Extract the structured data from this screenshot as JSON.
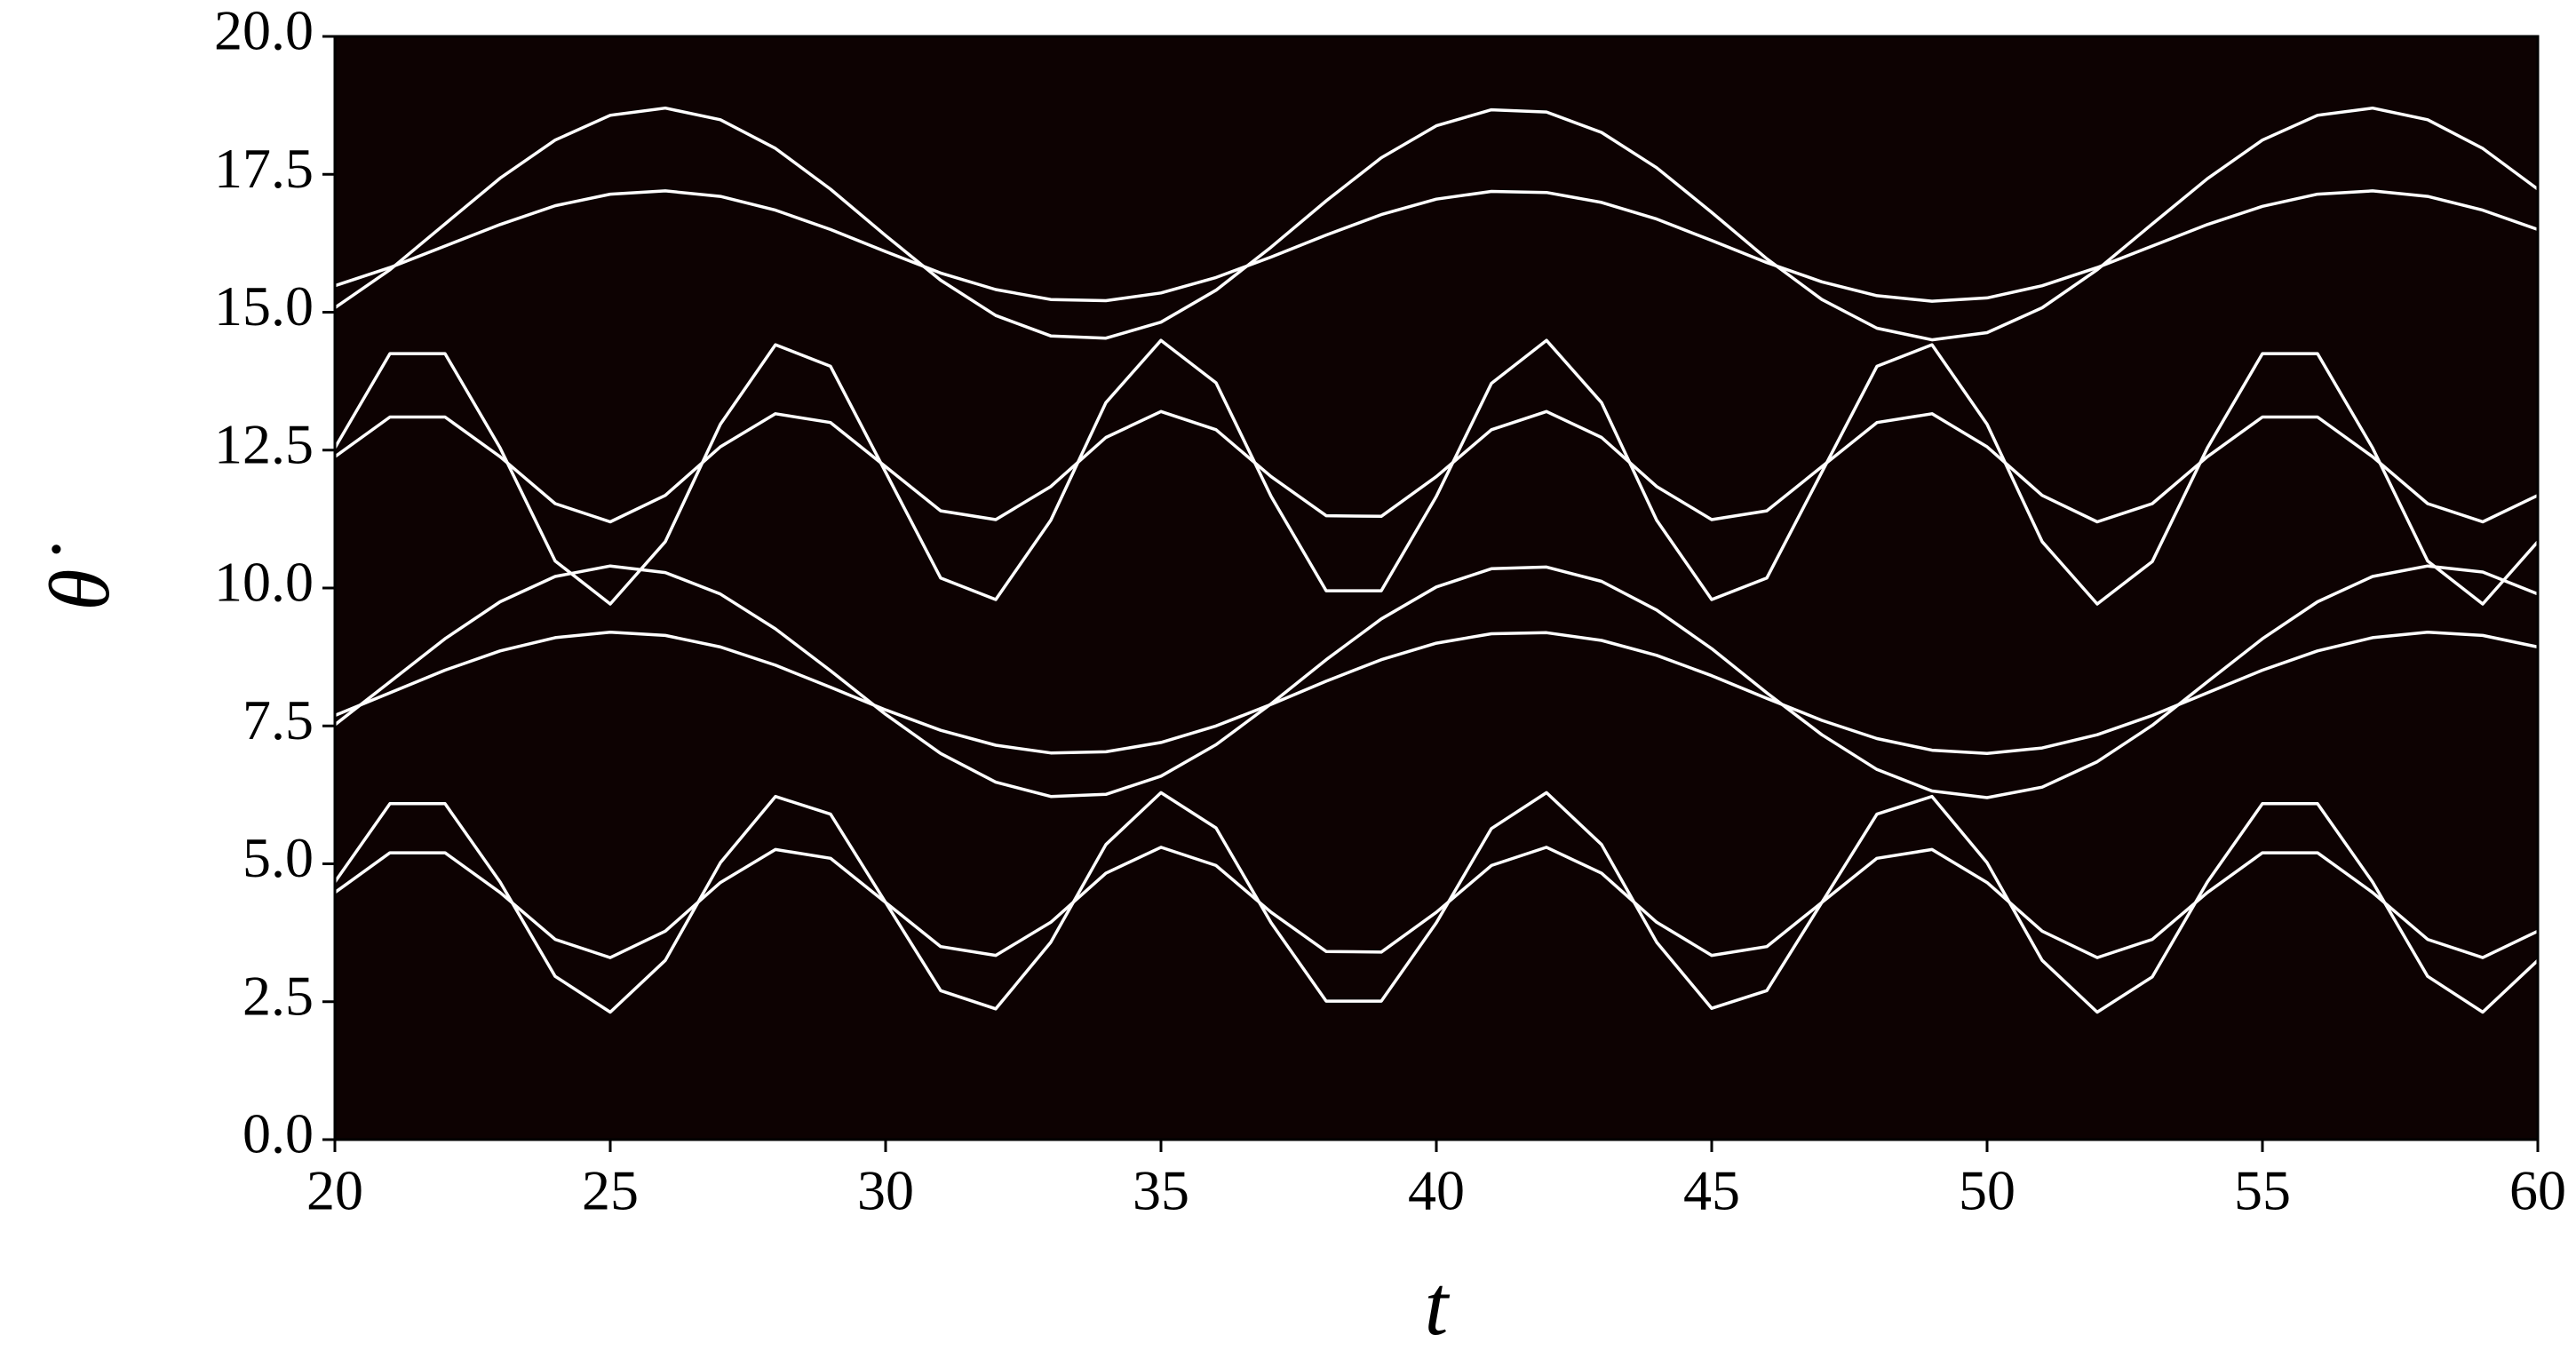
{
  "chart_data": {
    "type": "line",
    "x_label": "t",
    "y_label": "θ̇",
    "background": "#0d0202",
    "xlim": [
      20,
      60
    ],
    "ylim": [
      0,
      20
    ],
    "xticks": [
      20,
      25,
      30,
      35,
      40,
      45,
      50,
      55,
      60
    ],
    "yticks": [
      {
        "value": 0,
        "label": "0.0"
      },
      2.5,
      {
        "value": 5,
        "label": "5.0"
      },
      7.5,
      {
        "value": 10,
        "label": "10.0"
      },
      12.5,
      {
        "value": 15,
        "label": "15.0"
      },
      17.5,
      {
        "value": 20,
        "label": "20.0"
      }
    ],
    "x": [
      20,
      21,
      22,
      23,
      24,
      25,
      26,
      27,
      28,
      29,
      30,
      31,
      32,
      33,
      34,
      35,
      36,
      37,
      38,
      39,
      40,
      41,
      42,
      43,
      44,
      45,
      46,
      47,
      48,
      49,
      50,
      51,
      52,
      53,
      54,
      55,
      56,
      57,
      58,
      59,
      60
    ],
    "series": [
      {
        "color": "#ffffff",
        "values": [
          15.08,
          15.77,
          16.6,
          17.43,
          18.12,
          18.57,
          18.7,
          18.49,
          17.97,
          17.23,
          16.39,
          15.58,
          14.94,
          14.57,
          14.53,
          14.82,
          15.4,
          16.18,
          17.02,
          17.8,
          18.38,
          18.67,
          18.63,
          18.26,
          17.62,
          16.81,
          15.97,
          15.23,
          14.71,
          14.5,
          14.63,
          15.08,
          15.77,
          16.6,
          17.42,
          18.12,
          18.57,
          18.7,
          18.49,
          17.97,
          17.23
        ]
      },
      {
        "color": "#ffffff",
        "values": [
          15.48,
          15.81,
          16.2,
          16.59,
          16.93,
          17.14,
          17.2,
          17.1,
          16.85,
          16.5,
          16.1,
          15.71,
          15.41,
          15.23,
          15.21,
          15.35,
          15.63,
          16.0,
          16.4,
          16.77,
          17.05,
          17.19,
          17.17,
          16.99,
          16.69,
          16.3,
          15.9,
          15.55,
          15.3,
          15.2,
          15.26,
          15.48,
          15.81,
          16.2,
          16.59,
          16.92,
          17.14,
          17.2,
          17.1,
          16.85,
          16.5
        ]
      },
      {
        "color": "#ffffff",
        "values": [
          12.54,
          14.25,
          14.25,
          12.54,
          10.49,
          9.71,
          10.84,
          12.97,
          14.41,
          14.02,
          12.1,
          10.18,
          9.79,
          11.23,
          13.36,
          14.49,
          13.72,
          11.66,
          9.95,
          9.95,
          11.66,
          13.71,
          14.49,
          13.36,
          11.23,
          9.79,
          10.18,
          12.1,
          14.02,
          14.41,
          12.97,
          10.84,
          9.71,
          10.48,
          12.54,
          14.25,
          14.25,
          12.54,
          10.49,
          9.71,
          10.84
        ]
      },
      {
        "color": "#ffffff",
        "values": [
          12.38,
          13.1,
          13.1,
          12.38,
          11.53,
          11.2,
          11.68,
          12.56,
          13.16,
          13.0,
          12.2,
          11.4,
          11.24,
          11.84,
          12.73,
          13.2,
          12.87,
          12.02,
          11.31,
          11.3,
          12.02,
          12.87,
          13.2,
          12.73,
          11.84,
          11.24,
          11.4,
          12.2,
          13.0,
          13.16,
          12.56,
          11.68,
          11.2,
          11.53,
          12.38,
          13.1,
          13.1,
          12.38,
          11.53,
          11.2,
          11.68
        ]
      },
      {
        "color": "#ffffff",
        "values": [
          7.52,
          8.3,
          9.08,
          9.75,
          10.21,
          10.4,
          10.28,
          9.89,
          9.26,
          8.5,
          7.71,
          7.0,
          6.48,
          6.22,
          6.26,
          6.59,
          7.16,
          7.9,
          8.7,
          9.44,
          10.02,
          10.35,
          10.38,
          10.12,
          9.6,
          8.9,
          8.1,
          7.34,
          6.71,
          6.32,
          6.2,
          6.39,
          6.85,
          7.51,
          8.3,
          9.08,
          9.75,
          10.21,
          10.4,
          10.29,
          9.89
        ]
      },
      {
        "color": "#ffffff",
        "values": [
          7.69,
          8.1,
          8.51,
          8.86,
          9.1,
          9.2,
          9.14,
          8.93,
          8.6,
          8.2,
          7.79,
          7.42,
          7.15,
          7.01,
          7.03,
          7.2,
          7.5,
          7.89,
          8.31,
          8.7,
          9.0,
          9.17,
          9.19,
          9.05,
          8.78,
          8.41,
          8.0,
          7.6,
          7.27,
          7.06,
          7.0,
          7.1,
          7.34,
          7.69,
          8.1,
          8.51,
          8.86,
          9.1,
          9.2,
          9.14,
          8.93
        ]
      },
      {
        "color": "#ffffff",
        "values": [
          4.67,
          6.09,
          6.09,
          4.67,
          2.96,
          2.31,
          3.25,
          5.02,
          6.22,
          5.9,
          4.3,
          2.7,
          2.37,
          3.58,
          5.35,
          6.29,
          5.65,
          3.93,
          2.51,
          2.51,
          3.93,
          5.64,
          6.29,
          5.35,
          3.58,
          2.38,
          2.7,
          4.3,
          5.9,
          6.22,
          5.02,
          3.25,
          2.31,
          2.95,
          4.67,
          6.09,
          6.09,
          4.67,
          2.96,
          2.31,
          3.25
        ]
      },
      {
        "color": "#ffffff",
        "values": [
          4.48,
          5.2,
          5.2,
          4.48,
          3.63,
          3.3,
          3.78,
          4.66,
          5.26,
          5.1,
          4.3,
          3.5,
          3.34,
          3.94,
          4.83,
          5.3,
          4.97,
          4.12,
          3.41,
          3.4,
          4.12,
          4.97,
          5.3,
          4.83,
          3.94,
          3.34,
          3.5,
          4.3,
          5.1,
          5.26,
          4.66,
          3.78,
          3.3,
          3.63,
          4.48,
          5.2,
          5.2,
          4.48,
          3.63,
          3.3,
          3.78
        ]
      }
    ]
  }
}
